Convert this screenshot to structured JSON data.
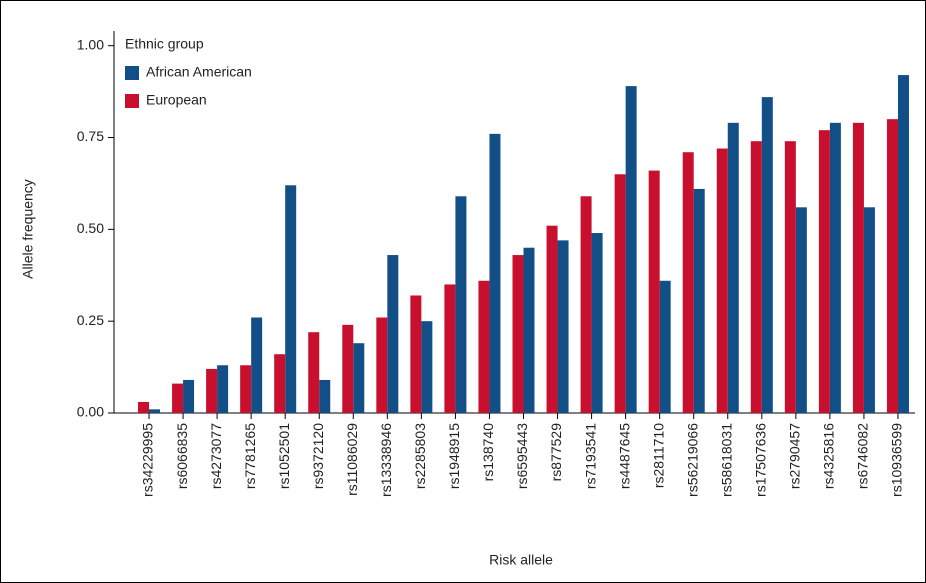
{
  "chart_data": {
    "type": "bar",
    "x_label": "Risk allele",
    "y_label": "Allele frequency",
    "legend_title": "Ethnic group",
    "categories": [
      "rs34229995",
      "rs6066835",
      "rs4273077",
      "rs7781265",
      "rs1052501",
      "rs9372120",
      "rs11086029",
      "rs13338946",
      "rs2285803",
      "rs1948915",
      "rs138740",
      "rs6595443",
      "rs877529",
      "rs7193541",
      "rs4487645",
      "rs2811710",
      "rs56219066",
      "rs58618031",
      "rs17507636",
      "rs2790457",
      "rs4325816",
      "rs6746082",
      "rs10936599"
    ],
    "series": [
      {
        "name": "African American",
        "color": "#134f87",
        "values": [
          0.01,
          0.09,
          0.13,
          0.26,
          0.62,
          0.09,
          0.19,
          0.43,
          0.25,
          0.59,
          0.76,
          0.45,
          0.47,
          0.49,
          0.89,
          0.36,
          0.61,
          0.79,
          0.86,
          0.56,
          0.79,
          0.56,
          0.92
        ]
      },
      {
        "name": "European",
        "color": "#c8102e",
        "values": [
          0.03,
          0.08,
          0.12,
          0.13,
          0.16,
          0.22,
          0.24,
          0.26,
          0.32,
          0.35,
          0.36,
          0.43,
          0.51,
          0.59,
          0.65,
          0.66,
          0.71,
          0.72,
          0.74,
          0.74,
          0.77,
          0.79,
          0.8
        ]
      }
    ],
    "ylim": [
      0,
      1.04
    ],
    "yticks": [
      {
        "value": 0,
        "label": "0.00"
      },
      {
        "value": 0.25,
        "label": "0.25"
      },
      {
        "value": 0.5,
        "label": "0.50"
      },
      {
        "value": 0.75,
        "label": "0.75"
      },
      {
        "value": 1,
        "label": "1.00"
      }
    ],
    "legend_position": "upper left",
    "grid": false
  }
}
